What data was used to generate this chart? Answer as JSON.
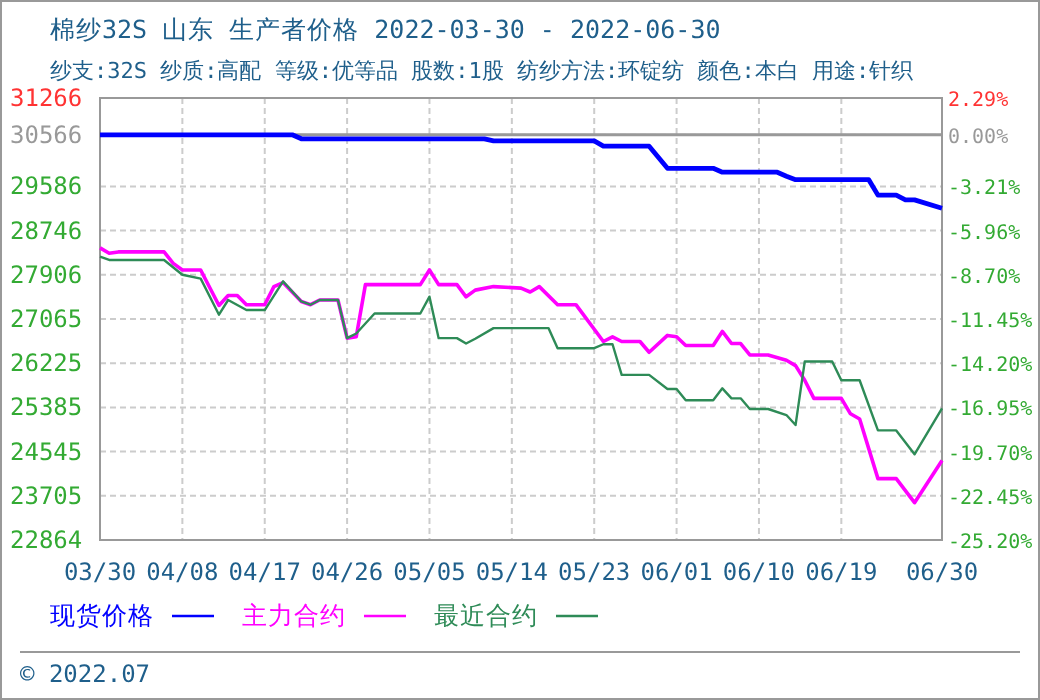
{
  "chart_data": {
    "type": "line",
    "title": "棉纱32S 山东 生产者价格 2022-03-30 - 2022-06-30",
    "subtitle": "纱支:32S 纱质:高配 等级:优等品 股数:1股 纺纱方法:环锭纺 颜色:本白 用途:针织",
    "annotations": [
      "© 2022.07"
    ],
    "xlim": [
      "2022-03-30",
      "2022-06-30"
    ],
    "xticks": [
      {
        "value": "2022-03-30",
        "label": "03/30"
      },
      {
        "value": "2022-04-08",
        "label": "04/08"
      },
      {
        "value": "2022-04-17",
        "label": "04/17"
      },
      {
        "value": "2022-04-26",
        "label": "04/26"
      },
      {
        "value": "2022-05-05",
        "label": "05/05"
      },
      {
        "value": "2022-05-14",
        "label": "05/14"
      },
      {
        "value": "2022-05-23",
        "label": "05/23"
      },
      {
        "value": "2022-06-01",
        "label": "06/01"
      },
      {
        "value": "2022-06-10",
        "label": "06/10"
      },
      {
        "value": "2022-06-19",
        "label": "06/19"
      },
      {
        "value": "2022-06-30",
        "label": "06/30"
      }
    ],
    "ylim": [
      22864,
      31266
    ],
    "yticks": [
      31266,
      30566,
      29586,
      28746,
      27906,
      27065,
      26225,
      25385,
      24545,
      23705,
      22864
    ],
    "y2lim": [
      -25.2,
      2.29
    ],
    "y2ticks": [
      {
        "value": 2.29,
        "label": "2.29%"
      },
      {
        "value": 0,
        "label": "0.00%"
      },
      {
        "value": -3.21,
        "label": "-3.21%"
      },
      {
        "value": -5.96,
        "label": "-5.96%"
      },
      {
        "value": -8.7,
        "label": "-8.70%"
      },
      {
        "value": -11.45,
        "label": "-11.45%"
      },
      {
        "value": -14.2,
        "label": "-14.20%"
      },
      {
        "value": -16.95,
        "label": "-16.95%"
      },
      {
        "value": -19.7,
        "label": "-19.70%"
      },
      {
        "value": -22.45,
        "label": "-22.45%"
      },
      {
        "value": -25.2,
        "label": "-25.20%"
      }
    ],
    "ref_lines": [
      {
        "axis": "y2",
        "value": 0,
        "color": "#999999",
        "line_style": "solid"
      }
    ],
    "grid": true,
    "legend": "bottom",
    "marker": "none",
    "line_style": "solid",
    "series": [
      {
        "name": "现货价格",
        "color": "#0000ff",
        "x": [
          "2022-03-30",
          "2022-04-20",
          "2022-04-21",
          "2022-05-11",
          "2022-05-12",
          "2022-05-23",
          "2022-05-24",
          "2022-05-29",
          "2022-05-31",
          "2022-06-05",
          "2022-06-06",
          "2022-06-12",
          "2022-06-13",
          "2022-06-14",
          "2022-06-22",
          "2022-06-23",
          "2022-06-25",
          "2022-06-26",
          "2022-06-27",
          "2022-06-30"
        ],
        "values": [
          30566,
          30566,
          30490,
          30490,
          30450,
          30450,
          30350,
          30350,
          29930,
          29930,
          29855,
          29855,
          29780,
          29713,
          29713,
          29420,
          29420,
          29330,
          29330,
          29170
        ]
      },
      {
        "name": "主力合约",
        "color": "#ff00ff",
        "x": [
          "2022-03-30",
          "2022-03-31",
          "2022-04-01",
          "2022-04-06",
          "2022-04-07",
          "2022-04-08",
          "2022-04-10",
          "2022-04-12",
          "2022-04-13",
          "2022-04-14",
          "2022-04-15",
          "2022-04-17",
          "2022-04-18",
          "2022-04-19",
          "2022-04-21",
          "2022-04-22",
          "2022-04-23",
          "2022-04-25",
          "2022-04-26",
          "2022-04-27",
          "2022-04-28",
          "2022-05-04",
          "2022-05-05",
          "2022-05-06",
          "2022-05-08",
          "2022-05-09",
          "2022-05-10",
          "2022-05-12",
          "2022-05-15",
          "2022-05-16",
          "2022-05-17",
          "2022-05-19",
          "2022-05-21",
          "2022-05-24",
          "2022-05-25",
          "2022-05-26",
          "2022-05-28",
          "2022-05-29",
          "2022-05-31",
          "2022-06-01",
          "2022-06-02",
          "2022-06-05",
          "2022-06-06",
          "2022-06-07",
          "2022-06-08",
          "2022-06-09",
          "2022-06-11",
          "2022-06-13",
          "2022-06-14",
          "2022-06-15",
          "2022-06-16",
          "2022-06-19",
          "2022-06-20",
          "2022-06-21",
          "2022-06-23",
          "2022-06-25",
          "2022-06-27",
          "2022-06-30"
        ],
        "values": [
          28417,
          28314,
          28340,
          28340,
          28123,
          27997,
          27997,
          27322,
          27513,
          27513,
          27337,
          27337,
          27681,
          27757,
          27398,
          27337,
          27426,
          27426,
          26701,
          26727,
          27719,
          27719,
          27997,
          27719,
          27719,
          27487,
          27614,
          27681,
          27652,
          27578,
          27681,
          27337,
          27337,
          26637,
          26727,
          26637,
          26637,
          26433,
          26753,
          26727,
          26561,
          26561,
          26828,
          26599,
          26599,
          26382,
          26382,
          26281,
          26179,
          25900,
          25557,
          25557,
          25263,
          25164,
          24031,
          24031,
          23573,
          24374
        ]
      },
      {
        "name": "最近合约",
        "color": "#2e8b57",
        "x": [
          "2022-03-30",
          "2022-03-31",
          "2022-04-06",
          "2022-04-08",
          "2022-04-10",
          "2022-04-12",
          "2022-04-13",
          "2022-04-15",
          "2022-04-17",
          "2022-04-19",
          "2022-04-21",
          "2022-04-22",
          "2022-04-23",
          "2022-04-25",
          "2022-04-26",
          "2022-04-27",
          "2022-04-29",
          "2022-05-04",
          "2022-05-05",
          "2022-05-06",
          "2022-05-08",
          "2022-05-09",
          "2022-05-10",
          "2022-05-12",
          "2022-05-18",
          "2022-05-19",
          "2022-05-23",
          "2022-05-24",
          "2022-05-25",
          "2022-05-26",
          "2022-05-29",
          "2022-05-31",
          "2022-06-01",
          "2022-06-02",
          "2022-06-05",
          "2022-06-06",
          "2022-06-07",
          "2022-06-08",
          "2022-06-09",
          "2022-06-11",
          "2022-06-13",
          "2022-06-14",
          "2022-06-15",
          "2022-06-18",
          "2022-06-19",
          "2022-06-21",
          "2022-06-23",
          "2022-06-25",
          "2022-06-27",
          "2022-06-30"
        ],
        "values": [
          28250,
          28187,
          28187,
          27906,
          27832,
          27147,
          27426,
          27235,
          27235,
          27780,
          27398,
          27337,
          27426,
          27426,
          26701,
          26790,
          27170,
          27170,
          27490,
          26701,
          26701,
          26599,
          26689,
          26892,
          26892,
          26510,
          26510,
          26585,
          26585,
          26002,
          26002,
          25735,
          25735,
          25519,
          25519,
          25747,
          25557,
          25557,
          25354,
          25354,
          25239,
          25049,
          26256,
          26256,
          25900,
          25900,
          24947,
          24947,
          24493,
          25366
        ]
      }
    ]
  }
}
